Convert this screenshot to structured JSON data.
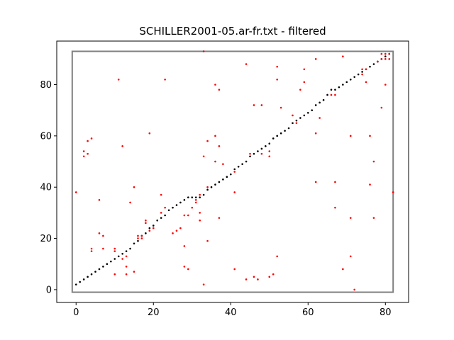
{
  "chart_data": {
    "type": "scatter",
    "title": "SCHILLER2001-05.ar-fr.txt - filtered",
    "xlabel": "",
    "ylabel": "",
    "xlim": [
      -5,
      86
    ],
    "ylim": [
      -5,
      97
    ],
    "xticks": [
      0,
      20,
      40,
      60,
      80
    ],
    "yticks": [
      0,
      20,
      40,
      60,
      80
    ],
    "grid": false,
    "frame": {
      "x": [
        -1,
        82
      ],
      "y": [
        -1,
        93
      ],
      "color": "#808080"
    },
    "series": [
      {
        "color": "#000000",
        "points": [
          [
            0,
            2
          ],
          [
            1,
            3
          ],
          [
            2,
            4
          ],
          [
            3,
            5
          ],
          [
            4,
            6
          ],
          [
            5,
            7
          ],
          [
            6,
            8
          ],
          [
            7,
            9
          ],
          [
            8,
            10
          ],
          [
            9,
            11
          ],
          [
            10,
            12
          ],
          [
            11,
            13
          ],
          [
            12,
            14
          ],
          [
            13,
            15
          ],
          [
            14,
            16
          ],
          [
            15,
            18
          ],
          [
            16,
            19
          ],
          [
            17,
            21
          ],
          [
            18,
            22
          ],
          [
            19,
            24
          ],
          [
            20,
            25
          ],
          [
            21,
            27
          ],
          [
            22,
            28
          ],
          [
            23,
            29
          ],
          [
            24,
            31
          ],
          [
            25,
            32
          ],
          [
            26,
            33
          ],
          [
            27,
            34
          ],
          [
            28,
            35
          ],
          [
            29,
            36
          ],
          [
            30,
            36
          ],
          [
            31,
            36
          ],
          [
            32,
            36
          ],
          [
            33,
            37
          ],
          [
            34,
            39
          ],
          [
            35,
            40
          ],
          [
            36,
            41
          ],
          [
            37,
            42
          ],
          [
            38,
            43
          ],
          [
            39,
            44
          ],
          [
            40,
            45
          ],
          [
            41,
            47
          ],
          [
            42,
            48
          ],
          [
            43,
            49
          ],
          [
            44,
            50
          ],
          [
            45,
            52
          ],
          [
            46,
            53
          ],
          [
            47,
            54
          ],
          [
            48,
            55
          ],
          [
            49,
            56
          ],
          [
            50,
            57
          ],
          [
            51,
            59
          ],
          [
            52,
            60
          ],
          [
            53,
            61
          ],
          [
            54,
            62
          ],
          [
            55,
            63
          ],
          [
            56,
            65
          ],
          [
            57,
            66
          ],
          [
            58,
            67
          ],
          [
            59,
            68
          ],
          [
            60,
            69
          ],
          [
            61,
            70
          ],
          [
            62,
            72
          ],
          [
            63,
            73
          ],
          [
            64,
            74
          ],
          [
            65,
            76
          ],
          [
            66,
            78
          ],
          [
            67,
            78
          ],
          [
            68,
            79
          ],
          [
            69,
            80
          ],
          [
            70,
            81
          ],
          [
            71,
            82
          ],
          [
            72,
            83
          ],
          [
            73,
            84
          ],
          [
            74,
            85
          ],
          [
            75,
            86
          ],
          [
            76,
            87
          ],
          [
            77,
            88
          ],
          [
            78,
            89
          ],
          [
            79,
            90
          ],
          [
            80,
            91
          ],
          [
            81,
            92
          ]
        ]
      },
      {
        "color": "#ff0000",
        "points": [
          [
            0,
            38
          ],
          [
            2,
            54
          ],
          [
            2,
            52
          ],
          [
            3,
            53
          ],
          [
            3,
            58
          ],
          [
            4,
            59
          ],
          [
            4,
            15
          ],
          [
            4,
            16
          ],
          [
            6,
            35
          ],
          [
            6,
            22
          ],
          [
            7,
            21
          ],
          [
            7,
            16
          ],
          [
            10,
            16
          ],
          [
            10,
            15
          ],
          [
            10,
            6
          ],
          [
            11,
            82
          ],
          [
            12,
            56
          ],
          [
            12,
            12
          ],
          [
            13,
            13
          ],
          [
            13,
            9
          ],
          [
            13,
            6
          ],
          [
            14,
            34
          ],
          [
            15,
            40
          ],
          [
            15,
            7
          ],
          [
            16,
            20
          ],
          [
            16,
            21
          ],
          [
            17,
            20
          ],
          [
            17,
            21
          ],
          [
            18,
            26
          ],
          [
            18,
            27
          ],
          [
            19,
            61
          ],
          [
            19,
            23
          ],
          [
            20,
            24
          ],
          [
            22,
            37
          ],
          [
            22,
            30
          ],
          [
            23,
            82
          ],
          [
            23,
            32
          ],
          [
            25,
            22
          ],
          [
            26,
            23
          ],
          [
            27,
            24
          ],
          [
            28,
            29
          ],
          [
            28,
            17
          ],
          [
            28,
            9
          ],
          [
            29,
            29
          ],
          [
            29,
            8
          ],
          [
            30,
            32
          ],
          [
            31,
            34
          ],
          [
            31,
            35
          ],
          [
            32,
            30
          ],
          [
            32,
            27
          ],
          [
            32,
            37
          ],
          [
            33,
            93
          ],
          [
            33,
            52
          ],
          [
            33,
            2
          ],
          [
            34,
            58
          ],
          [
            34,
            19
          ],
          [
            34,
            40
          ],
          [
            36,
            80
          ],
          [
            36,
            60
          ],
          [
            36,
            50
          ],
          [
            37,
            78
          ],
          [
            37,
            56
          ],
          [
            37,
            28
          ],
          [
            38,
            49
          ],
          [
            41,
            46
          ],
          [
            41,
            38
          ],
          [
            41,
            8
          ],
          [
            44,
            88
          ],
          [
            44,
            4
          ],
          [
            45,
            53
          ],
          [
            46,
            72
          ],
          [
            46,
            5
          ],
          [
            47,
            4
          ],
          [
            48,
            72
          ],
          [
            48,
            53
          ],
          [
            50,
            54
          ],
          [
            50,
            52
          ],
          [
            50,
            5
          ],
          [
            51,
            6
          ],
          [
            52,
            87
          ],
          [
            52,
            82
          ],
          [
            52,
            13
          ],
          [
            53,
            71
          ],
          [
            56,
            68
          ],
          [
            57,
            65
          ],
          [
            58,
            78
          ],
          [
            59,
            86
          ],
          [
            59,
            81
          ],
          [
            62,
            90
          ],
          [
            62,
            61
          ],
          [
            62,
            42
          ],
          [
            63,
            67
          ],
          [
            66,
            76
          ],
          [
            67,
            76
          ],
          [
            67,
            42
          ],
          [
            67,
            32
          ],
          [
            69,
            91
          ],
          [
            69,
            8
          ],
          [
            71,
            60
          ],
          [
            71,
            28
          ],
          [
            71,
            13
          ],
          [
            72,
            0
          ],
          [
            74,
            84
          ],
          [
            74,
            86
          ],
          [
            75,
            86
          ],
          [
            75,
            81
          ],
          [
            76,
            60
          ],
          [
            76,
            41
          ],
          [
            77,
            50
          ],
          [
            77,
            28
          ],
          [
            78,
            89
          ],
          [
            79,
            92
          ],
          [
            79,
            90
          ],
          [
            80,
            92
          ],
          [
            80,
            90
          ],
          [
            80,
            80
          ],
          [
            79,
            71
          ],
          [
            81,
            92
          ],
          [
            81,
            90
          ],
          [
            82,
            38
          ]
        ]
      }
    ]
  }
}
